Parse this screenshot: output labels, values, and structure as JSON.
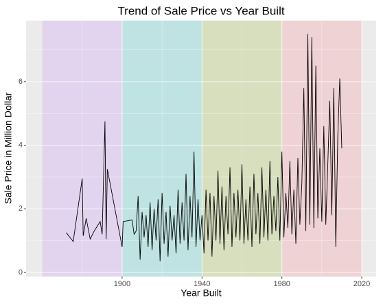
{
  "chart_data": {
    "type": "line",
    "title": "Trend of Sale Price vs Year Built",
    "xlabel": "Year Built",
    "ylabel": "Sale Price in Million Dollar",
    "xlim": [
      1851.9,
      2027.2
    ],
    "ylim": [
      -0.13,
      7.92
    ],
    "xticks": [
      1900,
      1940,
      1980,
      2020
    ],
    "yticks": [
      0,
      2,
      4,
      6
    ],
    "grid": true,
    "bands": [
      {
        "start": 1860,
        "end": 1900,
        "color": "#e2d4ee"
      },
      {
        "start": 1900,
        "end": 1940,
        "color": "#bfe3e3"
      },
      {
        "start": 1940,
        "end": 1980,
        "color": "#d7dfbf"
      },
      {
        "start": 1980,
        "end": 2020,
        "color": "#efd2d4"
      }
    ],
    "color": "#000000",
    "x": [
      1872,
      1875.5,
      1880,
      1880.5,
      1882,
      1884,
      1886,
      1889,
      1890,
      1891.4,
      1892,
      1892.6,
      1900,
      1900.5,
      1905,
      1906,
      1907,
      1908,
      1909,
      1910,
      1911,
      1912,
      1913,
      1914,
      1915,
      1916,
      1917,
      1918,
      1919,
      1920,
      1921,
      1922,
      1923,
      1924,
      1925,
      1926,
      1927,
      1928,
      1929,
      1930,
      1931,
      1932,
      1933,
      1934,
      1935,
      1936,
      1937,
      1938,
      1939,
      1940,
      1941,
      1942,
      1943,
      1944,
      1945,
      1946,
      1947,
      1948,
      1949,
      1950,
      1951,
      1952,
      1953,
      1954,
      1955,
      1956,
      1957,
      1958,
      1959,
      1960,
      1961,
      1962,
      1963,
      1964,
      1965,
      1966,
      1967,
      1968,
      1969,
      1970,
      1971,
      1972,
      1973,
      1974,
      1975,
      1976,
      1977,
      1978,
      1979,
      1980,
      1981,
      1982,
      1983,
      1984,
      1985,
      1986,
      1987,
      1988,
      1989,
      1990,
      1991,
      1992,
      1993,
      1994,
      1995,
      1996,
      1997,
      1998,
      1999,
      2000,
      2001,
      2002,
      2003,
      2004,
      2005,
      2006,
      2007,
      2008,
      2009,
      2010
    ],
    "values": [
      1.25,
      0.97,
      2.95,
      1.15,
      1.7,
      1.05,
      1.3,
      1.6,
      1.2,
      4.75,
      1.05,
      3.25,
      0.8,
      1.6,
      1.65,
      1.2,
      1.3,
      2.4,
      0.4,
      1.9,
      1.1,
      1.8,
      0.8,
      2.2,
      0.7,
      2.0,
      1.0,
      2.3,
      0.35,
      2.5,
      0.9,
      1.9,
      0.5,
      2.1,
      1.0,
      1.8,
      0.6,
      2.6,
      0.9,
      2.2,
      1.0,
      3.1,
      0.7,
      2.4,
      1.1,
      3.8,
      0.8,
      2.3,
      1.0,
      1.8,
      0.6,
      2.6,
      1.0,
      2.5,
      0.5,
      2.4,
      1.0,
      3.2,
      0.9,
      2.7,
      0.7,
      2.4,
      1.2,
      3.3,
      0.8,
      2.5,
      1.1,
      2.6,
      1.0,
      3.4,
      0.9,
      2.3,
      1.0,
      2.7,
      0.8,
      3.1,
      1.2,
      2.5,
      0.9,
      3.3,
      1.1,
      2.6,
      1.0,
      3.5,
      1.2,
      2.4,
      1.3,
      3.0,
      1.0,
      3.8,
      1.1,
      2.5,
      1.4,
      3.5,
      1.2,
      2.6,
      0.9,
      3.6,
      1.5,
      2.8,
      5.8,
      1.3,
      7.5,
      1.5,
      7.4,
      1.4,
      6.5,
      1.7,
      3.9,
      1.6,
      4.6,
      1.5,
      3.4,
      5.4,
      1.8,
      5.8,
      0.8,
      4.3,
      6.1,
      3.9
    ]
  }
}
